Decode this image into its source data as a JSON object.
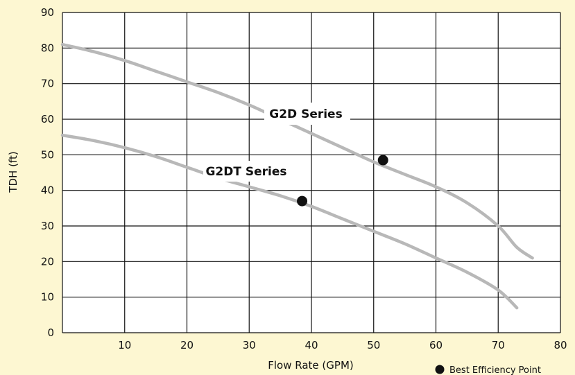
{
  "chart_data": {
    "type": "line",
    "title": "",
    "xlabel": "Flow Rate (GPM)",
    "ylabel": "TDH (ft)",
    "xlim": [
      0,
      80
    ],
    "ylim": [
      0,
      90
    ],
    "x_ticks": [
      10,
      20,
      30,
      40,
      50,
      60,
      70,
      80
    ],
    "y_ticks": [
      0,
      10,
      20,
      30,
      40,
      50,
      60,
      70,
      80,
      90
    ],
    "grid": true,
    "series": [
      {
        "name": "G2D Series",
        "color": "#b8b8b8",
        "x": [
          0,
          5,
          10,
          15,
          20,
          25,
          30,
          35,
          40,
          45,
          50,
          55,
          60,
          65,
          70,
          73,
          75.5
        ],
        "y": [
          81,
          79,
          76.5,
          73.5,
          70.5,
          67.5,
          64,
          60,
          56,
          52,
          48,
          44.5,
          41,
          36.5,
          30,
          24,
          21
        ]
      },
      {
        "name": "G2DT Series",
        "color": "#b8b8b8",
        "x": [
          0,
          5,
          10,
          15,
          20,
          25,
          30,
          35,
          40,
          45,
          50,
          55,
          60,
          65,
          70,
          73
        ],
        "y": [
          55.5,
          54,
          52,
          49.5,
          46.5,
          43.5,
          41,
          38.5,
          35.5,
          32,
          28.5,
          25,
          21,
          17,
          12,
          7
        ]
      }
    ],
    "best_efficiency_points": [
      {
        "series": "G2D Series",
        "x": 51.5,
        "y": 48.5
      },
      {
        "series": "G2DT Series",
        "x": 38.5,
        "y": 37
      }
    ],
    "legend": {
      "label": "Best Efficiency Point",
      "placement": "bottom-right"
    }
  },
  "colors": {
    "background": "#fdf7d2",
    "plot_background": "#ffffff",
    "grid": "#111111",
    "curve": "#b8b8b8",
    "marker": "#111111"
  }
}
